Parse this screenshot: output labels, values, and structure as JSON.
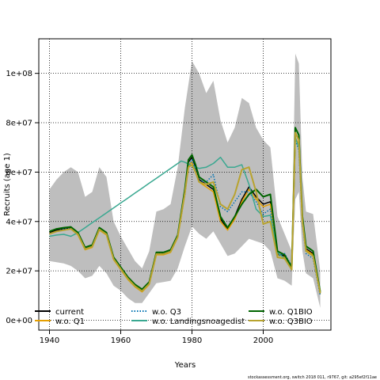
{
  "chart_data": {
    "type": "line",
    "xlabel": "Years",
    "ylabel": "Recruits (age 1)",
    "xlim": [
      1937,
      2019
    ],
    "ylim": [
      -4000000,
      114000000
    ],
    "x_ticks": [
      {
        "value": 1940,
        "label": "1940"
      },
      {
        "value": 1960,
        "label": "1960"
      },
      {
        "value": 1980,
        "label": "1980"
      },
      {
        "value": 2000,
        "label": "2000"
      }
    ],
    "y_ticks": [
      {
        "value": 0,
        "label": "0e+00"
      },
      {
        "value": 20000000,
        "label": "2e+07"
      },
      {
        "value": 40000000,
        "label": "4e+07"
      },
      {
        "value": 60000000,
        "label": "6e+07"
      },
      {
        "value": 80000000,
        "label": "8e+07"
      },
      {
        "value": 100000000,
        "label": "1e+08"
      }
    ],
    "grid": true,
    "legend_position": "bottom",
    "confidence_band": {
      "color": "#bebebe",
      "x": [
        1940,
        1942,
        1944,
        1946,
        1948,
        1950,
        1952,
        1954,
        1956,
        1958,
        1960,
        1962,
        1964,
        1966,
        1968,
        1970,
        1972,
        1974,
        1976,
        1978,
        1980,
        1982,
        1984,
        1986,
        1988,
        1990,
        1992,
        1994,
        1996,
        1998,
        2000,
        2002,
        2004,
        2006,
        2008,
        2009,
        2010,
        2011,
        2012,
        2014,
        2016
      ],
      "upper": [
        53000000,
        57000000,
        60000000,
        62000000,
        60000000,
        50000000,
        52000000,
        62000000,
        58000000,
        40000000,
        34000000,
        29000000,
        24000000,
        21000000,
        28000000,
        44000000,
        45000000,
        47000000,
        62000000,
        86000000,
        105000000,
        100000000,
        92000000,
        97000000,
        81000000,
        72000000,
        78000000,
        90000000,
        88000000,
        78000000,
        73000000,
        70000000,
        42000000,
        35000000,
        28000000,
        108000000,
        104000000,
        58000000,
        44000000,
        43000000,
        20000000
      ],
      "lower": [
        24000000,
        23500000,
        23000000,
        22000000,
        20000000,
        17000000,
        18000000,
        22000000,
        19000000,
        14000000,
        12000000,
        9000000,
        7000000,
        7000000,
        11000000,
        15000000,
        15500000,
        16000000,
        21000000,
        30000000,
        38000000,
        35000000,
        33000000,
        36000000,
        31000000,
        26000000,
        27000000,
        30000000,
        33000000,
        32000000,
        31000000,
        28000000,
        17000000,
        16000000,
        14000000,
        49000000,
        52000000,
        28000000,
        19000000,
        17000000,
        5000000
      ]
    },
    "series": [
      {
        "name": "current",
        "color": "#000000",
        "dash": "solid",
        "x": [
          1940,
          1942,
          1944,
          1946,
          1948,
          1950,
          1952,
          1954,
          1956,
          1958,
          1960,
          1962,
          1964,
          1966,
          1968,
          1970,
          1972,
          1974,
          1976,
          1978,
          1979,
          1980,
          1981,
          1982,
          1984,
          1986,
          1988,
          1990,
          1992,
          1994,
          1996,
          1998,
          2000,
          2002,
          2004,
          2006,
          2008,
          2009,
          2010,
          2011,
          2012,
          2014,
          2016
        ],
        "y": [
          35500000,
          36500000,
          37000000,
          37500000,
          35000000,
          29000000,
          30000000,
          37000000,
          35000000,
          25000000,
          21000000,
          17000000,
          14000000,
          12000000,
          15000000,
          27000000,
          27000000,
          28000000,
          34000000,
          52000000,
          64000000,
          66000000,
          62000000,
          57000000,
          55000000,
          53000000,
          41000000,
          37000000,
          42000000,
          49000000,
          54000000,
          50000000,
          47000000,
          48000000,
          27000000,
          26000000,
          21000000,
          76000000,
          73000000,
          41000000,
          29000000,
          27000000,
          11000000
        ]
      },
      {
        "name": "w.o. Q1",
        "color": "#e69f00",
        "dash": "solid",
        "x": [
          1940,
          1942,
          1944,
          1946,
          1948,
          1950,
          1952,
          1954,
          1956,
          1958,
          1960,
          1962,
          1964,
          1966,
          1968,
          1970,
          1972,
          1974,
          1976,
          1978,
          1979,
          1980,
          1981,
          1982,
          1984,
          1986,
          1988,
          1990,
          1992,
          1994,
          1996,
          1998,
          2000,
          2002,
          2004,
          2006,
          2008,
          2009,
          2010,
          2011,
          2012,
          2014,
          2016
        ],
        "y": [
          35000000,
          36000000,
          36500000,
          37000000,
          34500000,
          28500000,
          29500000,
          36500000,
          34500000,
          24500000,
          20500000,
          16500000,
          13500000,
          11500000,
          14500000,
          26500000,
          26500000,
          27500000,
          33500000,
          51000000,
          63000000,
          64000000,
          60000000,
          56000000,
          54000000,
          52000000,
          40000000,
          36500000,
          41000000,
          48000000,
          53000000,
          49000000,
          46000000,
          47000000,
          26500000,
          25500000,
          20500000,
          74000000,
          71000000,
          40000000,
          28500000,
          26500000,
          10500000
        ]
      },
      {
        "name": "w.o. Q3",
        "color": "#0072b2",
        "dash": "dotted",
        "x": [
          1940,
          1942,
          1944,
          1946,
          1948,
          1950,
          1952,
          1954,
          1956,
          1958,
          1960,
          1962,
          1964,
          1966,
          1968,
          1970,
          1972,
          1974,
          1976,
          1978,
          1979,
          1980,
          1981,
          1982,
          1984,
          1986,
          1988,
          1990,
          1992,
          1994,
          1996,
          1998,
          2000,
          2002,
          2004,
          2006,
          2008,
          2009,
          2010,
          2011,
          2012,
          2014,
          2016
        ],
        "y": [
          35000000,
          36000000,
          37000000,
          37500000,
          35000000,
          29000000,
          30000000,
          37000000,
          35000000,
          25000000,
          21000000,
          17000000,
          14000000,
          12000000,
          15000000,
          27000000,
          27000000,
          28000000,
          34000000,
          51000000,
          62000000,
          65000000,
          61000000,
          56500000,
          56000000,
          59000000,
          46000000,
          44000000,
          48000000,
          52000000,
          52000000,
          48000000,
          43000000,
          45000000,
          26000000,
          27000000,
          22000000,
          73000000,
          69000000,
          39000000,
          27000000,
          25000000,
          10000000
        ]
      },
      {
        "name": "w.o. Landingsnoagedist",
        "color": "#3aa891",
        "dash": "solid",
        "x": [
          1940,
          1942,
          1944,
          1946,
          1948,
          1950,
          1952,
          1954,
          1956,
          1958,
          1960,
          1962,
          1964,
          1966,
          1968,
          1970,
          1972,
          1974,
          1976,
          1977,
          1978,
          1980,
          1982,
          1984,
          1986,
          1988,
          1990,
          1992,
          1994,
          1996,
          1998,
          2000,
          2002,
          2004,
          2006,
          2008,
          2009,
          2010,
          2011,
          2012,
          2014,
          2016
        ],
        "y": [
          34000000,
          34500000,
          34800000,
          34000000,
          35500000,
          37500000,
          39500000,
          41500000,
          43500000,
          45500000,
          47500000,
          49500000,
          51500000,
          53500000,
          55500000,
          57500000,
          59500000,
          61500000,
          63500000,
          64500000,
          64000000,
          62500000,
          61500000,
          62000000,
          63500000,
          66000000,
          62000000,
          62000000,
          63000000,
          55000000,
          45000000,
          42000000,
          42500000,
          27500000,
          25000000,
          22000000,
          74000000,
          70000000,
          41000000,
          30000000,
          28000000,
          12000000
        ]
      },
      {
        "name": "w.o. Q1BIO",
        "color": "#006400",
        "dash": "solid",
        "lineWidth": 2,
        "x": [
          1940,
          1942,
          1944,
          1946,
          1948,
          1950,
          1952,
          1954,
          1956,
          1958,
          1960,
          1962,
          1964,
          1966,
          1968,
          1970,
          1972,
          1974,
          1976,
          1978,
          1979,
          1980,
          1981,
          1982,
          1984,
          1986,
          1988,
          1990,
          1992,
          1994,
          1996,
          1998,
          2000,
          2002,
          2004,
          2006,
          2008,
          2009,
          2010,
          2011,
          2012,
          2014,
          2016
        ],
        "y": [
          36000000,
          37000000,
          37500000,
          37800000,
          35500000,
          29500000,
          30500000,
          37500000,
          35500000,
          25500000,
          21500000,
          17500000,
          14500000,
          12500000,
          15500000,
          27500000,
          27500000,
          28500000,
          34500000,
          53000000,
          65000000,
          67000000,
          63000000,
          58000000,
          56000000,
          54000000,
          42000000,
          37500000,
          42000000,
          47000000,
          51000000,
          53000000,
          50000000,
          51000000,
          28000000,
          26500000,
          21500000,
          78000000,
          75000000,
          42000000,
          30000000,
          28000000,
          11500000
        ]
      },
      {
        "name": "w.o. Q3BIO",
        "color": "#b8a32e",
        "dash": "solid",
        "lineWidth": 2,
        "x": [
          1940,
          1942,
          1944,
          1946,
          1948,
          1950,
          1952,
          1954,
          1956,
          1958,
          1960,
          1962,
          1964,
          1966,
          1968,
          1970,
          1972,
          1974,
          1976,
          1978,
          1979,
          1980,
          1981,
          1982,
          1984,
          1986,
          1988,
          1990,
          1992,
          1994,
          1996,
          1998,
          2000,
          2002,
          2004,
          2006,
          2008,
          2009,
          2010,
          2011,
          2012,
          2014,
          2016
        ],
        "y": [
          35000000,
          36000000,
          36500000,
          37000000,
          34800000,
          28800000,
          29800000,
          36800000,
          34800000,
          24800000,
          20800000,
          16800000,
          13800000,
          11800000,
          14800000,
          26800000,
          26800000,
          27800000,
          33800000,
          51500000,
          62000000,
          63000000,
          60000000,
          56000000,
          55000000,
          56000000,
          47000000,
          45000000,
          51000000,
          61000000,
          62000000,
          52000000,
          39000000,
          40000000,
          25500000,
          25000000,
          20500000,
          76000000,
          73000000,
          40000000,
          28000000,
          26000000,
          11000000
        ]
      }
    ],
    "legend": [
      {
        "label": "current",
        "color": "#000000",
        "dash": "solid"
      },
      {
        "label": "w.o. Q1",
        "color": "#e69f00",
        "dash": "solid"
      },
      {
        "label": "w.o. Q3",
        "color": "#0072b2",
        "dash": "dotted"
      },
      {
        "label": "w.o. Landingsnoagedist",
        "color": "#3aa891",
        "dash": "solid"
      },
      {
        "label": "w.o. Q1BIO",
        "color": "#006400",
        "dash": "solid"
      },
      {
        "label": "w.o. Q3BIO",
        "color": "#b8a32e",
        "dash": "solid"
      }
    ]
  },
  "footer": "stockassessment.org, switch 2018 011, r9767, git: a295ef2f11ae"
}
